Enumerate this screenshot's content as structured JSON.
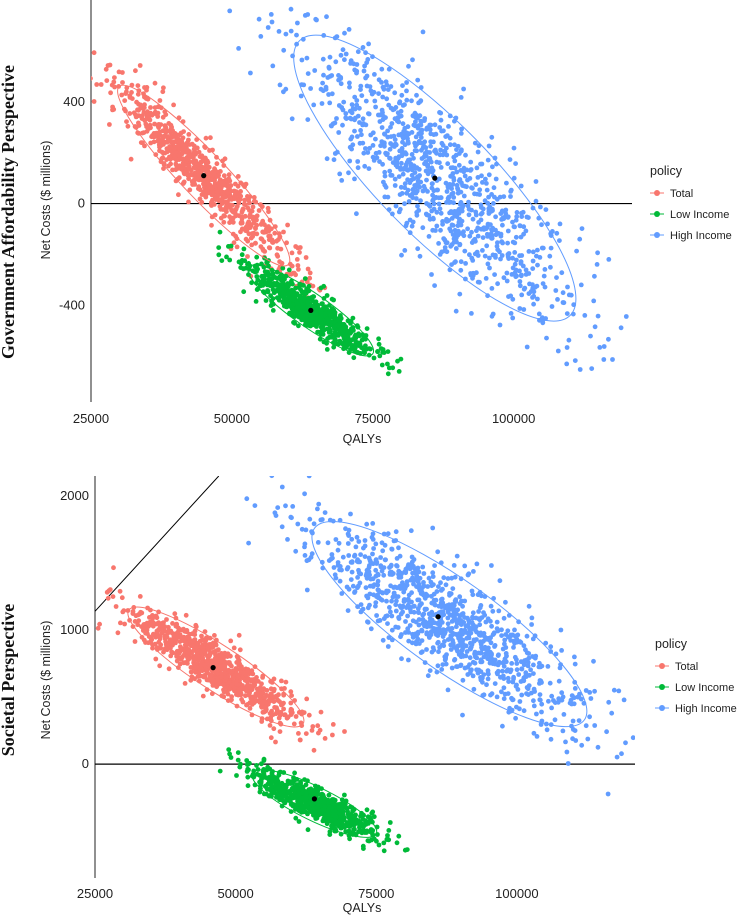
{
  "chart_data": [
    {
      "type": "scatter",
      "panel_title": "Government Affordability Perspective",
      "xlabel": "QALYs",
      "ylabel": "Net Costs ($ millions)",
      "xlim": [
        25000,
        121000
      ],
      "ylim": [
        -780,
        800
      ],
      "x_ticks": [
        25000,
        50000,
        75000,
        100000
      ],
      "x_tick_labels": [
        "25000",
        "50000",
        "75000",
        "100000"
      ],
      "y_ticks": [
        400,
        0,
        -400
      ],
      "y_tick_labels": [
        "400",
        "0",
        "-400"
      ],
      "grid": false,
      "reference_lines": [
        {
          "type": "horizontal",
          "y": 0
        }
      ],
      "legend": {
        "title": "policy",
        "position": "right",
        "entries": [
          "Total",
          "Low Income",
          "High Income"
        ]
      },
      "series": [
        {
          "name": "Total",
          "color": "#F8766D",
          "mean": {
            "x": 45000,
            "y": 110
          },
          "ellipse": {
            "x1": 30000,
            "y1": 460,
            "x2": 60000,
            "y2": -240,
            "minor_halfwidth": 4000
          },
          "points": 800,
          "spread": {
            "along": 0.5,
            "across": 0.32
          }
        },
        {
          "name": "Low Income",
          "color": "#00BA38",
          "mean": {
            "x": 64000,
            "y": -420
          },
          "ellipse": {
            "x1": 53000,
            "y1": -250,
            "x2": 75000,
            "y2": -590,
            "minor_halfwidth": 3000
          },
          "points": 700,
          "spread": {
            "along": 0.5,
            "across": 0.32
          }
        },
        {
          "name": "High Income",
          "color": "#619CFF",
          "mean": {
            "x": 86000,
            "y": 100
          },
          "ellipse": {
            "x1": 62000,
            "y1": 640,
            "x2": 110000,
            "y2": -440,
            "minor_halfwidth": 10000
          },
          "points": 1000,
          "spread": {
            "along": 0.5,
            "across": 0.34
          }
        }
      ]
    },
    {
      "type": "scatter",
      "panel_title": "Societal Perspective",
      "xlabel": "QALYs",
      "ylabel": "Net Costs ($ millions)",
      "xlim": [
        25000,
        121000
      ],
      "ylim": [
        -850,
        2150
      ],
      "x_ticks": [
        25000,
        50000,
        75000,
        100000
      ],
      "x_tick_labels": [
        "25000",
        "50000",
        "75000",
        "100000"
      ],
      "y_ticks": [
        2000,
        1000,
        0
      ],
      "y_tick_labels": [
        "2000",
        "1000",
        "0"
      ],
      "grid": false,
      "reference_lines": [
        {
          "type": "horizontal",
          "y": 0
        },
        {
          "type": "threshold",
          "x1": 25000,
          "y1": 1140,
          "x2": 47000,
          "y2": 2150
        }
      ],
      "legend": {
        "title": "policy",
        "position": "right",
        "entries": [
          "Total",
          "Low Income",
          "High Income"
        ]
      },
      "series": [
        {
          "name": "Total",
          "color": "#F8766D",
          "mean": {
            "x": 46000,
            "y": 720
          },
          "ellipse": {
            "x1": 31000,
            "y1": 1150,
            "x2": 62000,
            "y2": 300,
            "minor_halfwidth": 4000
          },
          "points": 800,
          "spread": {
            "along": 0.5,
            "across": 0.32
          }
        },
        {
          "name": "Low Income",
          "color": "#00BA38",
          "mean": {
            "x": 64000,
            "y": -260
          },
          "ellipse": {
            "x1": 53000,
            "y1": -70,
            "x2": 75000,
            "y2": -520,
            "minor_halfwidth": 3000
          },
          "points": 700,
          "spread": {
            "along": 0.5,
            "across": 0.32
          }
        },
        {
          "name": "High Income",
          "color": "#619CFF",
          "mean": {
            "x": 86000,
            "y": 1100
          },
          "ellipse": {
            "x1": 64000,
            "y1": 1760,
            "x2": 112000,
            "y2": 330,
            "minor_halfwidth": 8000
          },
          "points": 1000,
          "spread": {
            "along": 0.5,
            "across": 0.34
          }
        }
      ]
    }
  ]
}
